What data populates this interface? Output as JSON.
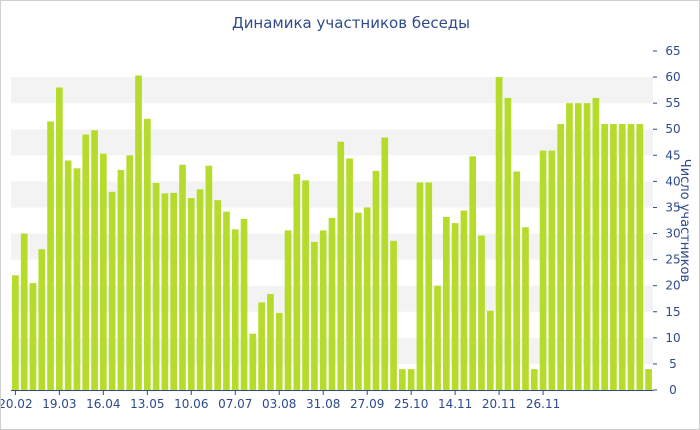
{
  "chart_data": {
    "type": "bar",
    "title": "Динамика участников беседы",
    "ylabel": "Число участников",
    "xlabel": "",
    "ylim": [
      0,
      65
    ],
    "y_ticks": [
      0,
      5,
      10,
      15,
      20,
      25,
      30,
      35,
      40,
      45,
      50,
      55,
      60,
      65
    ],
    "y_axis_position": "right",
    "grid": "alternating horizontal bands",
    "x_tick_labels": [
      "20.02",
      "19.03",
      "16.04",
      "13.05",
      "10.06",
      "07.07",
      "03.08",
      "31.08",
      "27.09",
      "25.10",
      "14.11",
      "20.11",
      "26.11"
    ],
    "x_tick_indices": [
      0,
      5,
      10,
      15,
      20,
      25,
      30,
      35,
      40,
      45,
      50,
      55,
      60
    ],
    "bar_color": "#b5dc2a",
    "values": [
      22,
      30,
      20.5,
      27,
      51.5,
      58,
      44,
      42.5,
      49,
      49.8,
      45.3,
      38,
      42.2,
      45,
      60.3,
      52,
      39.7,
      37.7,
      37.8,
      43.2,
      36.8,
      38.5,
      43,
      36.4,
      34.2,
      30.8,
      32.8,
      10.8,
      16.8,
      18.4,
      14.8,
      30.6,
      41.4,
      40.2,
      28.4,
      30.6,
      33,
      47.6,
      44.4,
      34,
      35,
      42,
      48.4,
      28.6,
      4,
      4,
      39.8,
      39.8,
      20,
      33.2,
      32,
      34.4,
      44.8,
      29.6,
      15.2,
      60,
      56,
      41.9,
      31.2,
      4,
      45.9,
      45.9,
      51,
      55,
      55,
      55,
      56,
      51,
      51,
      51,
      51,
      51,
      4
    ]
  }
}
